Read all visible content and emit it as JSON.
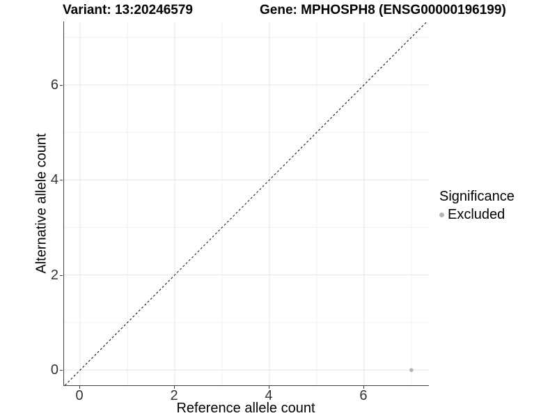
{
  "chart_data": {
    "type": "scatter",
    "title_left": "Variant: 13:20246579",
    "title_right": "Gene: MPHOSPH8 (ENSG00000196199)",
    "xlabel": "Reference allele count",
    "ylabel": "Alternative allele count",
    "xlim": [
      -0.34,
      7.37
    ],
    "ylim": [
      -0.32,
      7.33
    ],
    "x_major_ticks": [
      0,
      2,
      4,
      6
    ],
    "y_major_ticks": [
      0,
      2,
      4,
      6
    ],
    "x_minor_gridlines": [
      1,
      3,
      5,
      7
    ],
    "y_minor_gridlines": [
      1,
      3,
      5,
      7
    ],
    "identity_line": {
      "equation": "y = x",
      "style": "dashed",
      "color": "#000000"
    },
    "series": [
      {
        "name": "Excluded",
        "color": "#b5b5b5",
        "points": [
          {
            "x": 7,
            "y": 0
          }
        ]
      }
    ],
    "legend": {
      "title": "Significance",
      "position": "right",
      "items": [
        {
          "label": "Excluded",
          "color": "#b5b5b5"
        }
      ]
    },
    "grid": {
      "major_color": "#e5e5e5",
      "minor_color": "#f0f0f0",
      "background": "#ffffff"
    },
    "axis": {
      "line_color": "#404040",
      "tick_color": "#404040",
      "label_color": "#333333"
    }
  }
}
